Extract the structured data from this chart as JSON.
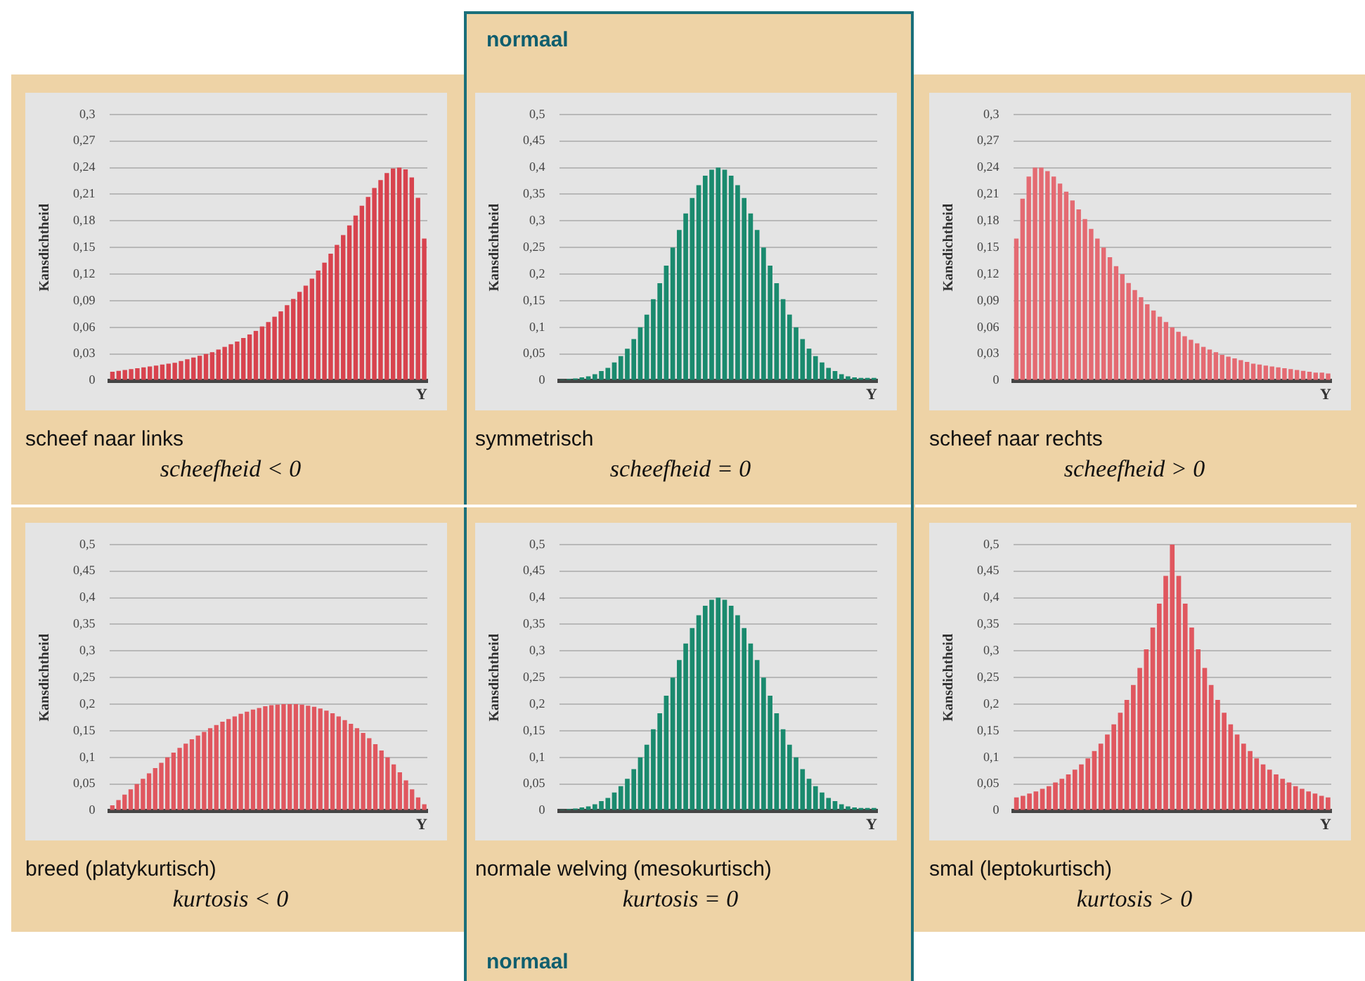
{
  "chart_data": [
    {
      "type": "bar",
      "title": "scheef naar links",
      "subtitle": "scheefheid < 0",
      "xlabel": "Y",
      "ylabel": "Kansdichtheid",
      "grid": "y",
      "color": "#d8434e",
      "tick_labels": "y",
      "categories": [
        null,
        null,
        null,
        null,
        null,
        null,
        null,
        null,
        null,
        null,
        null,
        null,
        null,
        null,
        null,
        null,
        null,
        null,
        null,
        null,
        null,
        null,
        null,
        null,
        null,
        null,
        null,
        null,
        null,
        null,
        null,
        null,
        null,
        null,
        null,
        null,
        null,
        null,
        null,
        null,
        null,
        null,
        null,
        null,
        null,
        null,
        null,
        null,
        null,
        null,
        null
      ],
      "values": [
        0.01,
        0.011,
        0.012,
        0.013,
        0.014,
        0.015,
        0.016,
        0.017,
        0.018,
        0.019,
        0.02,
        0.022,
        0.024,
        0.026,
        0.028,
        0.03,
        0.032,
        0.035,
        0.038,
        0.041,
        0.044,
        0.048,
        0.052,
        0.056,
        0.061,
        0.066,
        0.072,
        0.078,
        0.085,
        0.092,
        0.1,
        0.107,
        0.115,
        0.124,
        0.133,
        0.143,
        0.153,
        0.164,
        0.175,
        0.186,
        0.197,
        0.207,
        0.217,
        0.226,
        0.234,
        0.239,
        0.24,
        0.238,
        0.229,
        0.206,
        0.16
      ],
      "ylim": [
        0,
        0.3
      ],
      "yticks": [
        {
          "value": 0,
          "label": "0"
        },
        {
          "value": 0.03,
          "label": "0,03"
        },
        {
          "value": 0.06,
          "label": "0,06"
        },
        {
          "value": 0.09,
          "label": "0,09"
        },
        {
          "value": 0.12,
          "label": "0,12"
        },
        {
          "value": 0.15,
          "label": "0,15"
        },
        {
          "value": 0.18,
          "label": "0,18"
        },
        {
          "value": 0.21,
          "label": "0,21"
        },
        {
          "value": 0.24,
          "label": "0,24"
        },
        {
          "value": 0.27,
          "label": "0,27"
        },
        {
          "value": 0.3,
          "label": "0,3"
        }
      ]
    },
    {
      "type": "bar",
      "title": "symmetrisch",
      "subtitle": "scheefheid = 0",
      "xlabel": "Y",
      "ylabel": "Kansdichtheid",
      "grid": "y",
      "color": "#1a8a6e",
      "tick_labels": "y",
      "annotations": [
        "normaal"
      ],
      "categories": [
        null,
        null,
        null,
        null,
        null,
        null,
        null,
        null,
        null,
        null,
        null,
        null,
        null,
        null,
        null,
        null,
        null,
        null,
        null,
        null,
        null,
        null,
        null,
        null,
        null,
        null,
        null,
        null,
        null,
        null,
        null,
        null,
        null,
        null,
        null,
        null,
        null,
        null,
        null,
        null,
        null,
        null,
        null,
        null,
        null,
        null,
        null,
        null,
        null
      ],
      "values": [
        0.002,
        0.003,
        0.004,
        0.006,
        0.008,
        0.012,
        0.018,
        0.024,
        0.034,
        0.046,
        0.06,
        0.078,
        0.1,
        0.124,
        0.153,
        0.183,
        0.216,
        0.25,
        0.283,
        0.314,
        0.343,
        0.367,
        0.385,
        0.396,
        0.4,
        0.396,
        0.385,
        0.367,
        0.343,
        0.314,
        0.283,
        0.25,
        0.216,
        0.183,
        0.153,
        0.124,
        0.1,
        0.078,
        0.06,
        0.046,
        0.034,
        0.024,
        0.018,
        0.012,
        0.008,
        0.006,
        0.005,
        0.005,
        0.005
      ],
      "ylim": [
        0,
        0.5
      ],
      "yticks": [
        {
          "value": 0,
          "label": "0"
        },
        {
          "value": 0.05,
          "label": "0,05"
        },
        {
          "value": 0.1,
          "label": "0,1"
        },
        {
          "value": 0.15,
          "label": "0,15"
        },
        {
          "value": 0.2,
          "label": "0,2"
        },
        {
          "value": 0.25,
          "label": "0,25"
        },
        {
          "value": 0.3,
          "label": "0,3"
        },
        {
          "value": 0.35,
          "label": "0,35"
        },
        {
          "value": 0.4,
          "label": "0,4"
        },
        {
          "value": 0.45,
          "label": "0,45"
        },
        {
          "value": 0.5,
          "label": "0,5"
        }
      ]
    },
    {
      "type": "bar",
      "title": "scheef naar rechts",
      "subtitle": "scheefheid > 0",
      "xlabel": "Y",
      "ylabel": "Kansdichtheid",
      "grid": "y",
      "color": "#e46a72",
      "tick_labels": "y",
      "categories": [
        null,
        null,
        null,
        null,
        null,
        null,
        null,
        null,
        null,
        null,
        null,
        null,
        null,
        null,
        null,
        null,
        null,
        null,
        null,
        null,
        null,
        null,
        null,
        null,
        null,
        null,
        null,
        null,
        null,
        null,
        null,
        null,
        null,
        null,
        null,
        null,
        null,
        null,
        null,
        null,
        null,
        null,
        null,
        null,
        null,
        null,
        null,
        null,
        null,
        null,
        null
      ],
      "values": [
        0.16,
        0.205,
        0.23,
        0.24,
        0.24,
        0.236,
        0.23,
        0.222,
        0.213,
        0.203,
        0.193,
        0.182,
        0.171,
        0.16,
        0.15,
        0.139,
        0.129,
        0.12,
        0.11,
        0.102,
        0.094,
        0.086,
        0.079,
        0.072,
        0.066,
        0.06,
        0.055,
        0.05,
        0.046,
        0.042,
        0.038,
        0.035,
        0.032,
        0.029,
        0.027,
        0.025,
        0.023,
        0.021,
        0.019,
        0.018,
        0.017,
        0.016,
        0.015,
        0.014,
        0.013,
        0.012,
        0.011,
        0.01,
        0.009,
        0.009,
        0.008
      ],
      "ylim": [
        0,
        0.3
      ],
      "yticks": [
        {
          "value": 0,
          "label": "0"
        },
        {
          "value": 0.03,
          "label": "0,03"
        },
        {
          "value": 0.06,
          "label": "0,06"
        },
        {
          "value": 0.09,
          "label": "0,09"
        },
        {
          "value": 0.12,
          "label": "0,12"
        },
        {
          "value": 0.15,
          "label": "0,15"
        },
        {
          "value": 0.18,
          "label": "0,18"
        },
        {
          "value": 0.21,
          "label": "0,21"
        },
        {
          "value": 0.24,
          "label": "0,24"
        },
        {
          "value": 0.27,
          "label": "0,27"
        },
        {
          "value": 0.3,
          "label": "0,3"
        }
      ]
    },
    {
      "type": "bar",
      "title": "breed (platykurtisch)",
      "subtitle": "kurtosis < 0",
      "xlabel": "Y",
      "ylabel": "Kansdichtheid",
      "grid": "y",
      "color": "#e0575f",
      "tick_labels": "y",
      "categories": [
        null,
        null,
        null,
        null,
        null,
        null,
        null,
        null,
        null,
        null,
        null,
        null,
        null,
        null,
        null,
        null,
        null,
        null,
        null,
        null,
        null,
        null,
        null,
        null,
        null,
        null,
        null,
        null,
        null,
        null,
        null,
        null,
        null,
        null,
        null,
        null,
        null,
        null,
        null,
        null,
        null,
        null,
        null,
        null,
        null,
        null,
        null,
        null,
        null,
        null,
        null,
        null
      ],
      "values": [
        0.01,
        0.02,
        0.03,
        0.04,
        0.05,
        0.06,
        0.07,
        0.08,
        0.09,
        0.1,
        0.109,
        0.118,
        0.126,
        0.134,
        0.141,
        0.148,
        0.155,
        0.161,
        0.167,
        0.172,
        0.177,
        0.182,
        0.186,
        0.19,
        0.193,
        0.196,
        0.198,
        0.199,
        0.2,
        0.2,
        0.2,
        0.199,
        0.197,
        0.195,
        0.192,
        0.188,
        0.183,
        0.177,
        0.17,
        0.163,
        0.155,
        0.146,
        0.136,
        0.125,
        0.113,
        0.1,
        0.087,
        0.072,
        0.057,
        0.04,
        0.025,
        0.012
      ],
      "ylim": [
        0,
        0.5
      ],
      "yticks": [
        {
          "value": 0,
          "label": "0"
        },
        {
          "value": 0.05,
          "label": "0,05"
        },
        {
          "value": 0.1,
          "label": "0,1"
        },
        {
          "value": 0.15,
          "label": "0,15"
        },
        {
          "value": 0.2,
          "label": "0,2"
        },
        {
          "value": 0.25,
          "label": "0,25"
        },
        {
          "value": 0.3,
          "label": "0,3"
        },
        {
          "value": 0.35,
          "label": "0,35"
        },
        {
          "value": 0.4,
          "label": "0,4"
        },
        {
          "value": 0.45,
          "label": "0,45"
        },
        {
          "value": 0.5,
          "label": "0,5"
        }
      ]
    },
    {
      "type": "bar",
      "title": "normale welving (mesokurtisch)",
      "subtitle": "kurtosis = 0",
      "xlabel": "Y",
      "ylabel": "Kansdichtheid",
      "grid": "y",
      "color": "#1a8a6e",
      "tick_labels": "y",
      "annotations": [
        "normaal"
      ],
      "categories": [
        null,
        null,
        null,
        null,
        null,
        null,
        null,
        null,
        null,
        null,
        null,
        null,
        null,
        null,
        null,
        null,
        null,
        null,
        null,
        null,
        null,
        null,
        null,
        null,
        null,
        null,
        null,
        null,
        null,
        null,
        null,
        null,
        null,
        null,
        null,
        null,
        null,
        null,
        null,
        null,
        null,
        null,
        null,
        null,
        null,
        null,
        null,
        null,
        null
      ],
      "values": [
        0.002,
        0.003,
        0.004,
        0.006,
        0.008,
        0.012,
        0.018,
        0.024,
        0.034,
        0.046,
        0.06,
        0.078,
        0.1,
        0.124,
        0.153,
        0.183,
        0.216,
        0.25,
        0.283,
        0.314,
        0.343,
        0.367,
        0.385,
        0.396,
        0.4,
        0.396,
        0.385,
        0.367,
        0.343,
        0.314,
        0.283,
        0.25,
        0.216,
        0.183,
        0.153,
        0.124,
        0.1,
        0.078,
        0.06,
        0.046,
        0.034,
        0.024,
        0.018,
        0.012,
        0.008,
        0.006,
        0.005,
        0.005,
        0.005
      ],
      "ylim": [
        0,
        0.5
      ],
      "yticks": [
        {
          "value": 0,
          "label": "0"
        },
        {
          "value": 0.05,
          "label": "0,05"
        },
        {
          "value": 0.1,
          "label": "0,1"
        },
        {
          "value": 0.15,
          "label": "0,15"
        },
        {
          "value": 0.2,
          "label": "0,2"
        },
        {
          "value": 0.25,
          "label": "0,25"
        },
        {
          "value": 0.3,
          "label": "0,3"
        },
        {
          "value": 0.35,
          "label": "0,35"
        },
        {
          "value": 0.4,
          "label": "0,4"
        },
        {
          "value": 0.45,
          "label": "0,45"
        },
        {
          "value": 0.5,
          "label": "0,5"
        }
      ]
    },
    {
      "type": "bar",
      "title": "smal (leptokurtisch)",
      "subtitle": "kurtosis > 0",
      "xlabel": "Y",
      "ylabel": "Kansdichtheid",
      "grid": "y",
      "color": "#e0575f",
      "tick_labels": "y",
      "categories": [
        null,
        null,
        null,
        null,
        null,
        null,
        null,
        null,
        null,
        null,
        null,
        null,
        null,
        null,
        null,
        null,
        null,
        null,
        null,
        null,
        null,
        null,
        null,
        null,
        null,
        null,
        null,
        null,
        null,
        null,
        null,
        null,
        null,
        null,
        null,
        null,
        null,
        null,
        null,
        null,
        null,
        null,
        null,
        null,
        null,
        null,
        null,
        null,
        null
      ],
      "values": [
        0.025,
        0.028,
        0.032,
        0.036,
        0.041,
        0.046,
        0.053,
        0.06,
        0.068,
        0.077,
        0.087,
        0.098,
        0.112,
        0.126,
        0.143,
        0.162,
        0.184,
        0.208,
        0.236,
        0.268,
        0.303,
        0.344,
        0.389,
        0.441,
        0.5,
        0.441,
        0.389,
        0.344,
        0.303,
        0.268,
        0.236,
        0.208,
        0.184,
        0.162,
        0.143,
        0.126,
        0.112,
        0.098,
        0.087,
        0.077,
        0.068,
        0.06,
        0.053,
        0.046,
        0.041,
        0.036,
        0.032,
        0.028,
        0.025
      ],
      "ylim": [
        0,
        0.5
      ],
      "yticks": [
        {
          "value": 0,
          "label": "0"
        },
        {
          "value": 0.05,
          "label": "0,05"
        },
        {
          "value": 0.1,
          "label": "0,1"
        },
        {
          "value": 0.15,
          "label": "0,15"
        },
        {
          "value": 0.2,
          "label": "0,2"
        },
        {
          "value": 0.25,
          "label": "0,25"
        },
        {
          "value": 0.3,
          "label": "0,3"
        },
        {
          "value": 0.35,
          "label": "0,35"
        },
        {
          "value": 0.4,
          "label": "0,4"
        },
        {
          "value": 0.45,
          "label": "0,45"
        },
        {
          "value": 0.5,
          "label": "0,5"
        }
      ]
    }
  ]
}
